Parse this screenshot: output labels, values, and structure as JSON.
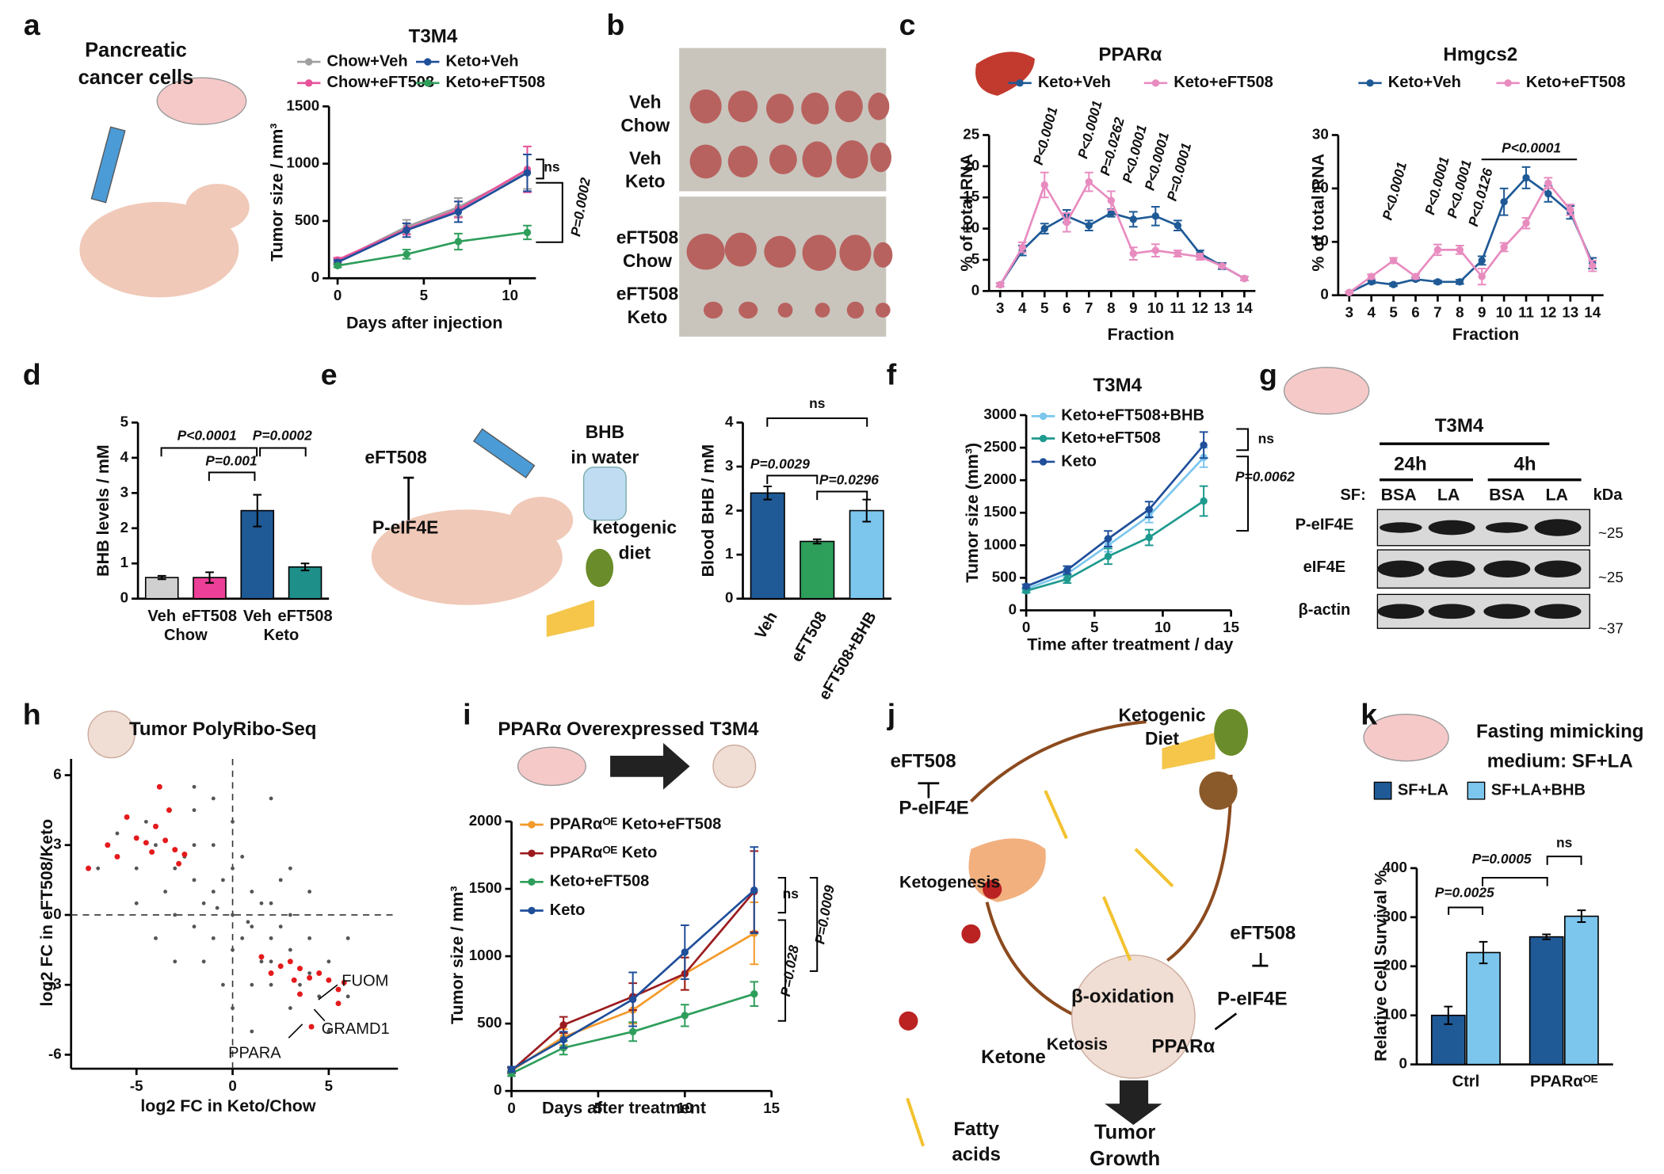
{
  "chart_data": [
    {
      "type": "line",
      "title": "T3M4",
      "xlabel": "Days after injection",
      "ylabel": "Tumor size / mm³",
      "x": [
        0,
        4,
        7,
        11
      ],
      "xlim": [
        -0.5,
        11.5
      ],
      "xticks": [
        0,
        5,
        10
      ],
      "ylim": [
        0,
        1500
      ],
      "yticks": [
        0,
        500,
        1000,
        1500
      ],
      "series": [
        {
          "name": "Chow+Veh",
          "color": "#a0a0a0",
          "values": [
            150,
            450,
            620,
            930
          ],
          "errors": [
            20,
            60,
            80,
            150
          ]
        },
        {
          "name": "Chow+eFT508",
          "color": "#e8529a",
          "values": [
            160,
            430,
            600,
            950
          ],
          "errors": [
            20,
            50,
            70,
            200
          ]
        },
        {
          "name": "Keto+Veh",
          "color": "#1f4e9a",
          "values": [
            140,
            420,
            580,
            920
          ],
          "errors": [
            20,
            60,
            90,
            160
          ]
        },
        {
          "name": "Keto+eFT508",
          "color": "#2e9e5b",
          "values": [
            110,
            210,
            320,
            400
          ],
          "errors": [
            15,
            40,
            70,
            60
          ]
        }
      ],
      "annotations": [
        "ns",
        "P=0.0002"
      ]
    },
    {
      "type": "line",
      "title": "PPARα",
      "xlabel": "Fraction",
      "ylabel": "% of total RNA",
      "x": [
        3,
        4,
        5,
        6,
        7,
        8,
        9,
        10,
        11,
        12,
        13,
        14
      ],
      "xlim": [
        2.5,
        14.5
      ],
      "xticks": [
        3,
        4,
        5,
        6,
        7,
        8,
        9,
        10,
        11,
        12,
        13,
        14
      ],
      "ylim": [
        0,
        25
      ],
      "yticks": [
        0,
        5,
        10,
        15,
        20,
        25
      ],
      "series": [
        {
          "name": "Keto+Veh",
          "color": "#1f5a96",
          "values": [
            1,
            6.5,
            10,
            12,
            10.5,
            12.5,
            11.5,
            12,
            10.5,
            6,
            4,
            2
          ],
          "errors": [
            0.3,
            0.8,
            0.8,
            1,
            0.8,
            0.6,
            1.2,
            1.5,
            0.8,
            0.5,
            0.5,
            0.3
          ]
        },
        {
          "name": "Keto+eFT508",
          "color": "#e88cc0",
          "values": [
            1,
            7,
            17,
            11,
            17.5,
            14.5,
            6,
            6.5,
            6,
            5.5,
            4,
            2
          ],
          "errors": [
            0.3,
            0.8,
            2,
            1.5,
            1.5,
            1.5,
            1,
            1,
            0.5,
            0.5,
            0.3,
            0.3
          ]
        }
      ],
      "annotations": [
        "P<0.0001",
        "P<0.0001",
        "P=0.0262",
        "P<0.0001",
        "P<0.0001",
        "P=0.0001"
      ]
    },
    {
      "type": "line",
      "title": "Hmgcs2",
      "xlabel": "Fraction",
      "ylabel": "% of total RNA",
      "x": [
        3,
        4,
        5,
        6,
        7,
        8,
        9,
        10,
        11,
        12,
        13,
        14
      ],
      "xlim": [
        2.5,
        14.5
      ],
      "xticks": [
        3,
        4,
        5,
        6,
        7,
        8,
        9,
        10,
        11,
        12,
        13,
        14
      ],
      "ylim": [
        0,
        30
      ],
      "yticks": [
        0,
        10,
        20,
        30
      ],
      "series": [
        {
          "name": "Keto+Veh",
          "color": "#1f5a96",
          "values": [
            0.5,
            2.5,
            2,
            3,
            2.5,
            2.5,
            6.5,
            17.5,
            22,
            19,
            15.5,
            6
          ],
          "errors": [
            0.2,
            0.3,
            0.3,
            0.3,
            0.3,
            0.4,
            0.8,
            2.5,
            2,
            1.5,
            1.2,
            1
          ]
        },
        {
          "name": "Keto+eFT508",
          "color": "#e88cc0",
          "values": [
            0.5,
            3.5,
            6.5,
            3.5,
            8.5,
            8.5,
            3.5,
            9,
            13.5,
            21,
            16,
            5.5
          ],
          "errors": [
            0.2,
            0.4,
            0.5,
            0.4,
            1,
            0.8,
            1.5,
            0.8,
            1,
            1,
            1,
            1
          ]
        }
      ],
      "annotations": [
        "P<0.0001",
        "P<0.0001",
        "P<0.0001",
        "P<0.0126",
        "P<0.0001"
      ]
    },
    {
      "type": "bar",
      "ylabel": "BHB levels / mM",
      "categories": [
        "Veh",
        "eFT508",
        "Veh",
        "eFT508"
      ],
      "groups": [
        "Chow",
        "Keto"
      ],
      "values": [
        0.6,
        0.6,
        2.5,
        0.9
      ],
      "errors": [
        0.05,
        0.15,
        0.45,
        0.1
      ],
      "colors": [
        "#d0d0d0",
        "#ec3f97",
        "#1f5a96",
        "#1f8f8a"
      ],
      "ylim": [
        0,
        5
      ],
      "yticks": [
        0,
        1,
        2,
        3,
        4,
        5
      ],
      "annotations": [
        "P<0.0001",
        "P=0.001",
        "P=0.0002"
      ]
    },
    {
      "type": "bar",
      "ylabel": "Blood BHB / mM",
      "categories": [
        "Veh",
        "eFT508",
        "eFT508+BHB"
      ],
      "values": [
        2.4,
        1.3,
        2.0
      ],
      "errors": [
        0.15,
        0.05,
        0.25
      ],
      "colors": [
        "#1f5a96",
        "#2e9e5b",
        "#7cc6ee"
      ],
      "ylim": [
        0,
        4
      ],
      "yticks": [
        0,
        1,
        2,
        3,
        4
      ],
      "annotations": [
        "ns",
        "P=0.0029",
        "P=0.0296"
      ]
    },
    {
      "type": "line",
      "title": "T3M4",
      "xlabel": "Time after treatment / day",
      "ylabel": "Tumor size (mm³)",
      "x": [
        0,
        3,
        6,
        9,
        13
      ],
      "xlim": [
        0,
        15
      ],
      "xticks": [
        0,
        5,
        10,
        15
      ],
      "ylim": [
        0,
        3000
      ],
      "yticks": [
        0,
        500,
        1000,
        1500,
        2000,
        2500,
        3000
      ],
      "series": [
        {
          "name": "Keto+eFT508+BHB",
          "color": "#7cc6ee",
          "values": [
            330,
            560,
            1000,
            1450,
            2350
          ],
          "errors": [
            30,
            60,
            100,
            100,
            150
          ]
        },
        {
          "name": "Keto+eFT508",
          "color": "#1f9a8f",
          "values": [
            300,
            480,
            830,
            1120,
            1680
          ],
          "errors": [
            30,
            60,
            120,
            120,
            230
          ]
        },
        {
          "name": "Keto",
          "color": "#1f4e9a",
          "values": [
            370,
            620,
            1100,
            1550,
            2540
          ],
          "errors": [
            30,
            60,
            120,
            120,
            200
          ]
        }
      ],
      "annotations": [
        "ns",
        "P=0.0062"
      ]
    },
    {
      "type": "scatter",
      "title": "Tumor PolyRibo-Seq",
      "xlabel": "log2 FC in Keto/Chow",
      "ylabel": "log2 FC in eFT508/Keto",
      "xlim": [
        -8.4,
        8.6
      ],
      "xticks": [
        -5,
        0,
        5
      ],
      "ylim": [
        -6.6,
        6.7
      ],
      "yticks": [
        -6,
        -3,
        0,
        3,
        6
      ],
      "points": {
        "color": "#555555",
        "x": [
          -4,
          -3,
          -2,
          -1,
          0,
          1,
          2,
          3,
          4,
          -3.5,
          -2.5,
          -1.5,
          -0.5,
          0.5,
          1.5,
          2.5,
          3.5,
          -5,
          -6,
          -4.5,
          -2,
          -1,
          0,
          1,
          2,
          3,
          4,
          5,
          6,
          -1,
          0,
          1,
          2,
          -2,
          -3,
          -1.5,
          0.5,
          1.5,
          2.5,
          -0.5,
          3,
          -7,
          -2,
          2,
          4,
          -3,
          5,
          6,
          0,
          -4,
          1,
          -1,
          3,
          -5,
          4.5,
          0,
          2,
          -2,
          -0.8,
          0.8
        ],
        "y": [
          3,
          2,
          1.5,
          1,
          0,
          -0.5,
          -1,
          -1.5,
          -2.5,
          1,
          2.5,
          0.5,
          1.5,
          -1,
          -2,
          -0.5,
          -3,
          2,
          3.5,
          4,
          4.5,
          3,
          2,
          1,
          0.5,
          0,
          -1,
          -2,
          -3.5,
          -1,
          -1.5,
          -3,
          -3,
          -0.5,
          0,
          -2,
          2.5,
          0.5,
          1.5,
          -3,
          -4,
          2,
          5.5,
          5,
          1,
          -2,
          -5,
          -1,
          4,
          -1,
          -5,
          5,
          2,
          0.5,
          -3.5,
          -4,
          -2,
          3,
          0.3,
          -0.3
        ]
      },
      "highlight": {
        "color": "#e41a1c",
        "x": [
          -7.5,
          -6.5,
          -6,
          -5,
          -4.5,
          -4,
          -3.5,
          -3,
          -3.3,
          -3.8,
          -2.8,
          -2.5,
          -5.5,
          -4.2,
          1.5,
          2,
          2.5,
          3,
          3.2,
          3.5,
          4,
          4.5,
          5,
          5.5,
          5.8,
          5.5,
          4.1,
          3.5
        ],
        "y": [
          2,
          3,
          2.5,
          3.3,
          3.1,
          3.8,
          3.2,
          2.8,
          4.5,
          5.5,
          2.2,
          2.6,
          4.2,
          2.7,
          -1.8,
          -2.5,
          -2.2,
          -2,
          -2.8,
          -2.3,
          -2.7,
          -2.5,
          -2.8,
          -3.2,
          -2.9,
          -3.8,
          -4.8,
          -3.4
        ]
      },
      "gene_labels": [
        "FUOM",
        "GRAMD1",
        "PPARA"
      ]
    },
    {
      "type": "line",
      "title": "PPARα Overexpressed T3M4",
      "xlabel": "Days after treatment",
      "ylabel": "Tumor size / mm³",
      "x": [
        0,
        3,
        7,
        10,
        14
      ],
      "xlim": [
        0,
        15
      ],
      "xticks": [
        0,
        5,
        10,
        15
      ],
      "ylim": [
        0,
        2000
      ],
      "yticks": [
        0,
        500,
        1000,
        1500,
        2000
      ],
      "series": [
        {
          "name": "PPARαᴼᴱ Keto+eFT508",
          "color": "#f39a2b",
          "values": [
            150,
            400,
            600,
            870,
            1170
          ],
          "errors": [
            20,
            60,
            100,
            120,
            230
          ]
        },
        {
          "name": "PPARαᴼᴱ Keto",
          "color": "#9b1b1f",
          "values": [
            150,
            490,
            700,
            870,
            1480
          ],
          "errors": [
            20,
            60,
            100,
            120,
            300
          ]
        },
        {
          "name": "Keto+eFT508",
          "color": "#2e9e5b",
          "values": [
            130,
            320,
            440,
            560,
            720
          ],
          "errors": [
            20,
            50,
            70,
            80,
            90
          ]
        },
        {
          "name": "Keto",
          "color": "#1f4e9a",
          "values": [
            160,
            380,
            680,
            1030,
            1490
          ],
          "errors": [
            20,
            60,
            200,
            200,
            320
          ]
        }
      ],
      "annotations": [
        "ns",
        "P=0.028",
        "P=0.0009"
      ]
    },
    {
      "type": "bar",
      "title": [
        "Fasting mimicking",
        "medium: SF+LA"
      ],
      "ylabel": "Relative Cell Survival %",
      "categories": [
        "Ctrl",
        "PPARαᴼᴱ"
      ],
      "series": [
        {
          "name": "SF+LA",
          "color": "#1f5a96",
          "values": [
            100,
            260
          ],
          "errors": [
            18,
            5
          ]
        },
        {
          "name": "SF+LA+BHB",
          "color": "#7cc6ee",
          "values": [
            228,
            302
          ],
          "errors": [
            22,
            12
          ]
        }
      ],
      "ylim": [
        0,
        400
      ],
      "yticks": [
        0,
        100,
        200,
        300,
        400
      ],
      "annotations": [
        "P=0.0025",
        "P=0.0005",
        "ns"
      ]
    }
  ],
  "figure": {
    "panel_labels": [
      "a",
      "b",
      "c",
      "d",
      "e",
      "f",
      "g",
      "h",
      "i",
      "j",
      "k"
    ],
    "a": {
      "caption": [
        "Pancreatic",
        "cancer cells"
      ]
    },
    "b": {
      "labels": [
        [
          "Veh",
          "Chow"
        ],
        [
          "Veh",
          "Keto"
        ],
        [
          "eFT508",
          "Chow"
        ],
        [
          "eFT508",
          "Keto"
        ]
      ]
    },
    "e": {
      "drug": "eFT508",
      "target": "P-eIF4E",
      "water": [
        "BHB",
        "in water"
      ],
      "diet": [
        "ketogenic",
        "diet"
      ]
    },
    "g": {
      "cell_line": "T3M4",
      "times": [
        "24h",
        "4h"
      ],
      "sf_label": "SF:",
      "conditions": [
        "BSA",
        "LA",
        "BSA",
        "LA"
      ],
      "unit": "kDa",
      "proteins": [
        "P-eIF4E",
        "eIF4E",
        "β-actin"
      ],
      "markers": [
        "~25",
        "~25",
        "~37"
      ]
    },
    "j": {
      "inhibitor_1": "eFT508",
      "target_1": "P-eIF4E",
      "organ_process": "Ketogenesis",
      "diet": [
        "Ketogenic",
        "Diet"
      ],
      "inhibitor_2": "eFT508",
      "target_2": "P-eIF4E",
      "pathway": "β-oxidation",
      "state": "Ketosis",
      "factor": "PPARα",
      "ketone": "Ketone",
      "fatty_acids": [
        "Fatty",
        "acids"
      ],
      "outcome": [
        "Tumor",
        "Growth"
      ]
    }
  }
}
